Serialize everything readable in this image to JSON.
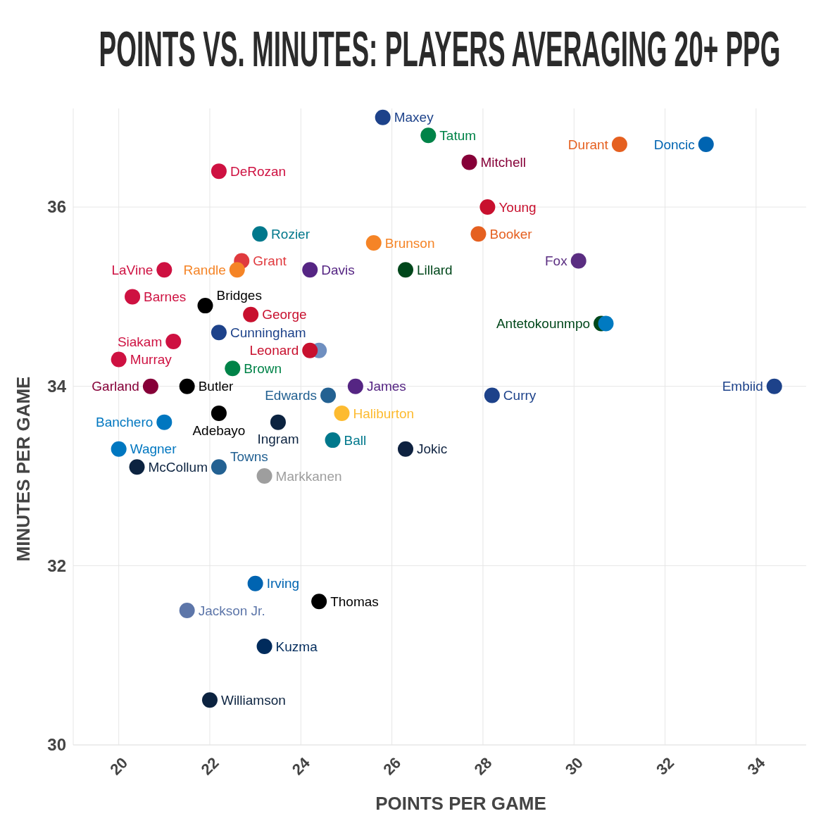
{
  "chart_data": {
    "type": "scatter",
    "title": "POINTS VS. MINUTES: PLAYERS AVERAGING 20+ PPG",
    "xlabel": "POINTS PER GAME",
    "ylabel": "MINUTES PER GAME",
    "xlim": [
      19,
      35.1
    ],
    "ylim": [
      30,
      37.1
    ],
    "xticks": [
      20,
      22,
      24,
      26,
      28,
      30,
      32,
      34
    ],
    "yticks": [
      30,
      32,
      34,
      36
    ],
    "grid": true,
    "marker": "circle",
    "series": [
      {
        "name": "Maxey",
        "color": "#1d428a",
        "x": [
          25.8
        ],
        "values": [
          37.0
        ]
      },
      {
        "name": "Tatum",
        "color": "#008348",
        "x": [
          26.8
        ],
        "values": [
          36.8
        ]
      },
      {
        "name": "Mitchell",
        "color": "#860038",
        "x": [
          27.7
        ],
        "values": [
          36.5
        ]
      },
      {
        "name": "Durant",
        "color": "#e56020",
        "x": [
          31.0
        ],
        "values": [
          36.7
        ]
      },
      {
        "name": "Doncic",
        "color": "#0064b1",
        "x": [
          32.9
        ],
        "values": [
          36.7
        ]
      },
      {
        "name": "DeRozan",
        "color": "#ce1141",
        "x": [
          22.2
        ],
        "values": [
          36.4
        ]
      },
      {
        "name": "Young",
        "color": "#c8102e",
        "x": [
          28.1
        ],
        "values": [
          36.0
        ]
      },
      {
        "name": "Rozier",
        "color": "#00788c",
        "x": [
          23.1
        ],
        "values": [
          35.7
        ]
      },
      {
        "name": "Booker",
        "color": "#e56020",
        "x": [
          27.9
        ],
        "values": [
          35.7
        ]
      },
      {
        "name": "Brunson",
        "color": "#f58426",
        "x": [
          25.6
        ],
        "values": [
          35.6
        ]
      },
      {
        "name": "Fox",
        "color": "#5a2d81",
        "x": [
          30.1
        ],
        "values": [
          35.4
        ]
      },
      {
        "name": "Grant",
        "color": "#e03a3e",
        "x": [
          22.7
        ],
        "values": [
          35.4
        ]
      },
      {
        "name": "Randle",
        "color": "#f58426",
        "x": [
          22.6
        ],
        "values": [
          35.3
        ]
      },
      {
        "name": "LaVine",
        "color": "#ce1141",
        "x": [
          21.0
        ],
        "values": [
          35.3
        ]
      },
      {
        "name": "Davis",
        "color": "#552583",
        "x": [
          24.2
        ],
        "values": [
          35.3
        ]
      },
      {
        "name": "Lillard",
        "color": "#00471b",
        "x": [
          26.3
        ],
        "values": [
          35.3
        ]
      },
      {
        "name": "Barnes",
        "color": "#ce1141",
        "x": [
          20.3
        ],
        "values": [
          35.0
        ]
      },
      {
        "name": "Bridges",
        "color": "#000000",
        "x": [
          21.9
        ],
        "values": [
          34.9
        ]
      },
      {
        "name": "George",
        "color": "#c8102e",
        "x": [
          22.9
        ],
        "values": [
          34.8
        ]
      },
      {
        "name": "Cunningham",
        "color": "#1d428a",
        "x": [
          22.2
        ],
        "values": [
          34.6
        ]
      },
      {
        "name": "Antetokounmpo",
        "color": "#00471b",
        "x": [
          30.6
        ],
        "values": [
          34.7
        ]
      },
      {
        "name": null,
        "color": "#007ac1",
        "x": [
          30.7
        ],
        "values": [
          34.7
        ]
      },
      {
        "name": "Siakam",
        "color": "#ce1141",
        "x": [
          21.2
        ],
        "values": [
          34.5
        ]
      },
      {
        "name": null,
        "color": "#6f8fc0",
        "x": [
          24.4
        ],
        "values": [
          34.4
        ]
      },
      {
        "name": "Leonard",
        "color": "#c8102e",
        "x": [
          24.2
        ],
        "values": [
          34.4
        ]
      },
      {
        "name": "Murray",
        "color": "#ce1141",
        "x": [
          20.0
        ],
        "values": [
          34.3
        ]
      },
      {
        "name": "Brown",
        "color": "#008348",
        "x": [
          22.5
        ],
        "values": [
          34.2
        ]
      },
      {
        "name": "Butler",
        "color": "#000000",
        "x": [
          21.5
        ],
        "values": [
          34.0
        ]
      },
      {
        "name": "Garland",
        "color": "#860038",
        "x": [
          20.7
        ],
        "values": [
          34.0
        ]
      },
      {
        "name": "James",
        "color": "#552583",
        "x": [
          25.2
        ],
        "values": [
          34.0
        ]
      },
      {
        "name": "Edwards",
        "color": "#236192",
        "x": [
          24.6
        ],
        "values": [
          33.9
        ]
      },
      {
        "name": "Curry",
        "color": "#1d428a",
        "x": [
          28.2
        ],
        "values": [
          33.9
        ]
      },
      {
        "name": "Embiid",
        "color": "#1d428a",
        "x": [
          34.4
        ],
        "values": [
          34.0
        ]
      },
      {
        "name": "Adebayo",
        "color": "#000000",
        "x": [
          22.2
        ],
        "values": [
          33.7
        ]
      },
      {
        "name": "Haliburton",
        "color": "#fdbb30",
        "x": [
          24.9
        ],
        "values": [
          33.7
        ]
      },
      {
        "name": "Banchero",
        "color": "#0077c0",
        "x": [
          21.0
        ],
        "values": [
          33.6
        ]
      },
      {
        "name": "Ingram",
        "color": "#0c2340",
        "x": [
          23.5
        ],
        "values": [
          33.6
        ]
      },
      {
        "name": "Ball",
        "color": "#00788c",
        "x": [
          24.7
        ],
        "values": [
          33.4
        ]
      },
      {
        "name": "Jokic",
        "color": "#0e2240",
        "x": [
          26.3
        ],
        "values": [
          33.3
        ]
      },
      {
        "name": "Wagner",
        "color": "#0077c0",
        "x": [
          20.0
        ],
        "values": [
          33.3
        ]
      },
      {
        "name": "McCollum",
        "color": "#0c2340",
        "x": [
          20.4
        ],
        "values": [
          33.1
        ]
      },
      {
        "name": "Towns",
        "color": "#236192",
        "x": [
          22.2
        ],
        "values": [
          33.1
        ]
      },
      {
        "name": "Markkanen",
        "color": "#9e9e9e",
        "x": [
          23.2
        ],
        "values": [
          33.0
        ]
      },
      {
        "name": "Irving",
        "color": "#0064b1",
        "x": [
          23.0
        ],
        "values": [
          31.8
        ]
      },
      {
        "name": "Thomas",
        "color": "#000000",
        "x": [
          24.4
        ],
        "values": [
          31.6
        ]
      },
      {
        "name": "Jackson Jr.",
        "color": "#5d76a9",
        "x": [
          21.5
        ],
        "values": [
          31.5
        ]
      },
      {
        "name": "Kuzma",
        "color": "#002b5c",
        "x": [
          23.2
        ],
        "values": [
          31.1
        ]
      },
      {
        "name": "Williamson",
        "color": "#0c2340",
        "x": [
          22.0
        ],
        "values": [
          30.5
        ]
      }
    ]
  }
}
